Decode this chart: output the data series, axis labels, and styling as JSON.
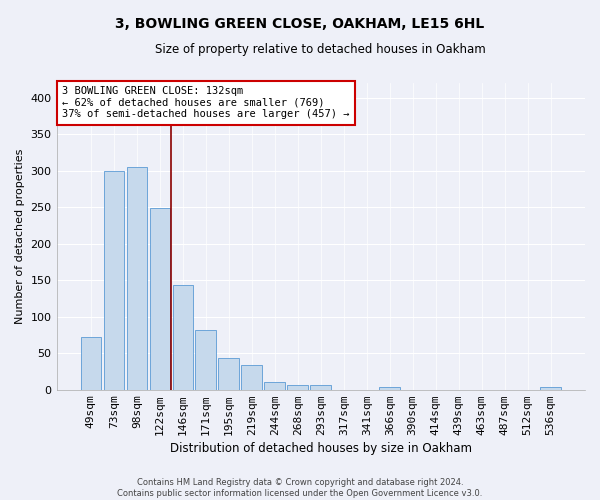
{
  "title": "3, BOWLING GREEN CLOSE, OAKHAM, LE15 6HL",
  "subtitle": "Size of property relative to detached houses in Oakham",
  "xlabel": "Distribution of detached houses by size in Oakham",
  "ylabel": "Number of detached properties",
  "footer_line1": "Contains HM Land Registry data © Crown copyright and database right 2024.",
  "footer_line2": "Contains public sector information licensed under the Open Government Licence v3.0.",
  "bar_labels": [
    "49sqm",
    "73sqm",
    "98sqm",
    "122sqm",
    "146sqm",
    "171sqm",
    "195sqm",
    "219sqm",
    "244sqm",
    "268sqm",
    "293sqm",
    "317sqm",
    "341sqm",
    "366sqm",
    "390sqm",
    "414sqm",
    "439sqm",
    "463sqm",
    "487sqm",
    "512sqm",
    "536sqm"
  ],
  "bar_values": [
    72,
    299,
    305,
    249,
    144,
    82,
    44,
    34,
    10,
    6,
    7,
    0,
    0,
    4,
    0,
    0,
    0,
    0,
    0,
    0,
    4
  ],
  "bar_color": "#c6d9ec",
  "bar_edge_color": "#5b9bd5",
  "background_color": "#eef0f8",
  "grid_color": "#ffffff",
  "vline_color": "#8b0000",
  "annotation_text": "3 BOWLING GREEN CLOSE: 132sqm\n← 62% of detached houses are smaller (769)\n37% of semi-detached houses are larger (457) →",
  "annotation_box_color": "white",
  "annotation_box_edge_color": "#cc0000",
  "ylim": [
    0,
    420
  ],
  "yticks": [
    0,
    50,
    100,
    150,
    200,
    250,
    300,
    350,
    400
  ],
  "vline_x": 3.5
}
